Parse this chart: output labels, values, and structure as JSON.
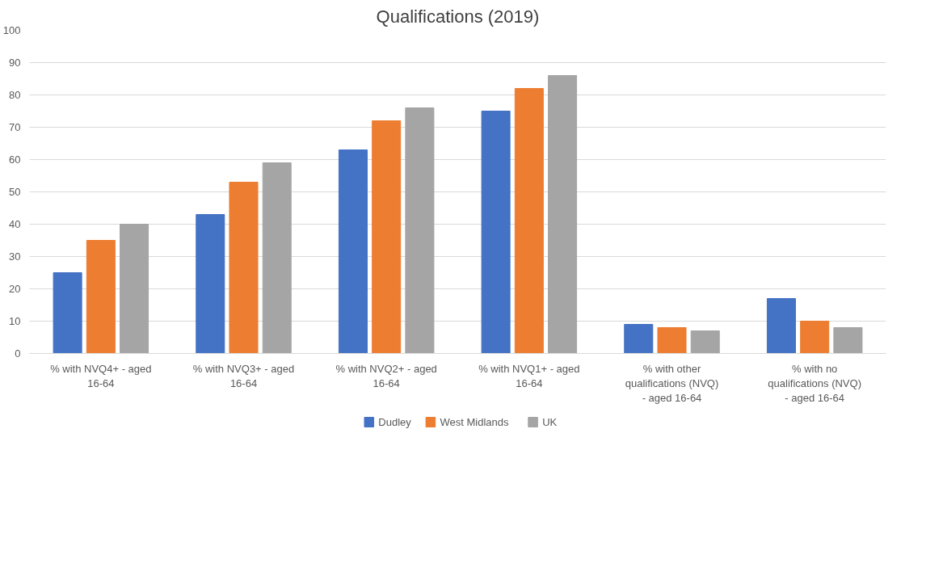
{
  "chart_data": {
    "type": "bar",
    "title": "Qualifications (2019)",
    "categories": [
      "% with NVQ4+ - aged 16-64",
      "% with NVQ3+ - aged 16-64",
      "% with NVQ2+ - aged 16-64",
      "% with NVQ1+ - aged 16-64",
      "% with other qualifications (NVQ) - aged 16-64",
      "% with no qualifications (NVQ) - aged 16-64"
    ],
    "series": [
      {
        "name": "Dudley",
        "color": "#4472c4",
        "values": [
          25,
          43,
          63,
          75,
          9,
          17
        ]
      },
      {
        "name": "West Midlands",
        "color": "#ed7d31",
        "values": [
          35,
          53,
          72,
          82,
          8,
          10
        ]
      },
      {
        "name": "UK",
        "color": "#a5a5a5",
        "values": [
          40,
          59,
          76,
          86,
          7,
          8
        ]
      }
    ],
    "ylim": [
      0,
      100
    ],
    "yticks": [
      0,
      10,
      20,
      30,
      40,
      50,
      60,
      70,
      80,
      90,
      100
    ],
    "grid": "y",
    "legend": "bottom"
  }
}
